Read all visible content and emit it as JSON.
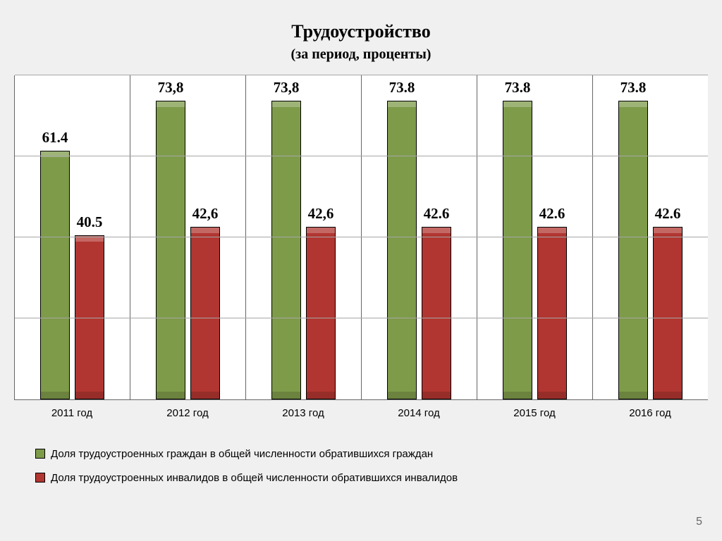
{
  "title": "Трудоустройство",
  "subtitle": "(за период, проценты)",
  "title_fontsize": 26,
  "subtitle_fontsize": 20,
  "background_color": "#f0f0f0",
  "page_number": "5",
  "chart": {
    "type": "bar",
    "ylim": [
      0,
      80
    ],
    "ygrid_step": 20,
    "grid_color": "#a6a6a6",
    "plot_border_color": "#666666",
    "categories": [
      "2011 год",
      "2012 год",
      "2013 год",
      "2014 год",
      "2015 год",
      "2016 год"
    ],
    "xaxis_fontsize": 15,
    "bar_width_pct": 26,
    "bar_gap_pct": 4,
    "data_label_fontsize": 21,
    "series": [
      {
        "name": "Доля трудоустроенных граждан в общей численности обратившихся граждан",
        "color": "#7e9b4a",
        "values": [
          61.4,
          73.8,
          73.8,
          73.8,
          73.8,
          73.8
        ],
        "labels": [
          "61.4",
          "73,8",
          "73,8",
          "73.8",
          "73.8",
          "73.8"
        ]
      },
      {
        "name": "Доля трудоустроенных инвалидов в общей численности обратившихся инвалидов",
        "color": "#b13631",
        "values": [
          40.5,
          42.6,
          42.6,
          42.6,
          42.6,
          42.6
        ],
        "labels": [
          "40.5",
          "42,6",
          "42,6",
          "42.6",
          "42.6",
          "42.6"
        ]
      }
    ],
    "legend_fontsize": 15
  }
}
